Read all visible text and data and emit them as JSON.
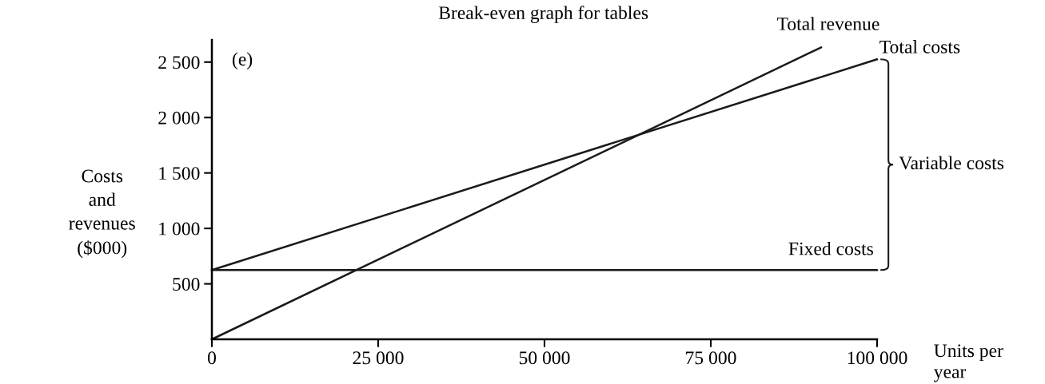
{
  "chart_data": {
    "type": "line",
    "title": "Break-even graph for tables",
    "xlabel": "Units per\nyear",
    "ylabel": "Costs\nand\nrevenues\n($000)",
    "annotations": [
      "(e)",
      "Variable costs"
    ],
    "xlim": [
      0,
      100000
    ],
    "xticks": [
      0,
      {
        "value": 25000,
        "label": "25 000"
      },
      {
        "value": 50000,
        "label": "50 000"
      },
      {
        "value": 75000,
        "label": "75 000"
      },
      {
        "value": 100000,
        "label": "100 000"
      }
    ],
    "ylim": [
      0,
      2700
    ],
    "yticks": [
      500,
      {
        "value": 1000,
        "label": "1 000"
      },
      {
        "value": 1500,
        "label": "1 500"
      },
      {
        "value": 2000,
        "label": "2 000"
      },
      {
        "value": 2500,
        "label": "2 500"
      }
    ],
    "grid": false,
    "legend": false,
    "series": [
      {
        "name": "Total revenue",
        "color": "#1a1a1a",
        "x": [
          0,
          91600
        ],
        "values": [
          0,
          2633
        ]
      },
      {
        "name": "Total costs",
        "color": "#1a1a1a",
        "x": [
          0,
          100000
        ],
        "values": [
          625,
          2525
        ]
      },
      {
        "name": "Fixed costs",
        "color": "#1a1a1a",
        "x": [
          0,
          100000
        ],
        "values": [
          625,
          625
        ]
      }
    ]
  }
}
